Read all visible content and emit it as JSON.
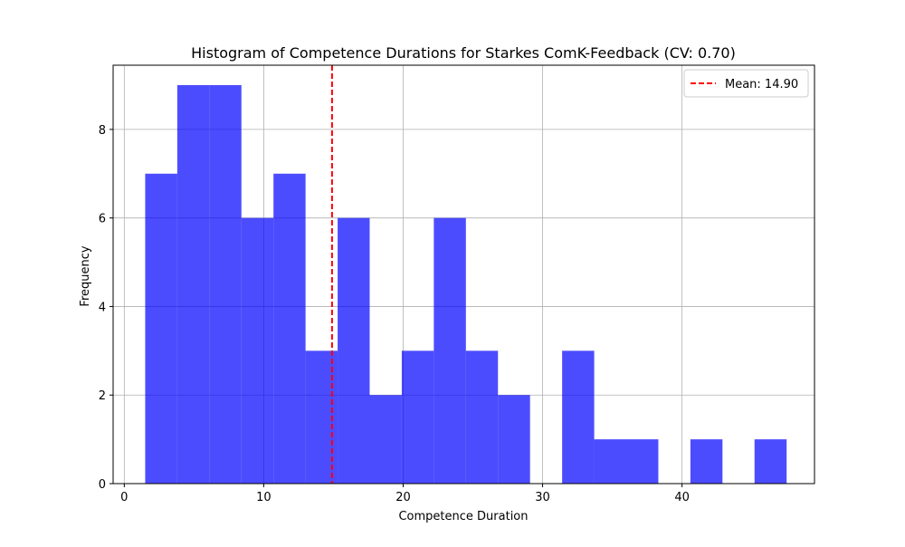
{
  "chart_data": {
    "type": "bar",
    "title": "Histogram of Competence Durations for Starkes ComK-Feedback (CV: 0.70)",
    "xlabel": "Competence Duration",
    "ylabel": "Frequency",
    "xlim": [
      -0.8,
      49.5
    ],
    "ylim": [
      0,
      9.45
    ],
    "xticks": [
      0,
      10,
      20,
      30,
      40
    ],
    "yticks": [
      0,
      2,
      4,
      6,
      8
    ],
    "grid": true,
    "bar_color": "#0000ff",
    "bar_opacity": 0.7,
    "bins": [
      {
        "x0": 1.5,
        "x1": 3.8,
        "count": 7
      },
      {
        "x0": 3.8,
        "x1": 6.1,
        "count": 9
      },
      {
        "x0": 6.1,
        "x1": 8.4,
        "count": 9
      },
      {
        "x0": 8.4,
        "x1": 10.7,
        "count": 6
      },
      {
        "x0": 10.7,
        "x1": 13.0,
        "count": 7
      },
      {
        "x0": 13.0,
        "x1": 15.3,
        "count": 3
      },
      {
        "x0": 15.3,
        "x1": 17.6,
        "count": 6
      },
      {
        "x0": 17.6,
        "x1": 19.9,
        "count": 2
      },
      {
        "x0": 19.9,
        "x1": 22.2,
        "count": 3
      },
      {
        "x0": 22.2,
        "x1": 24.5,
        "count": 6
      },
      {
        "x0": 24.5,
        "x1": 26.8,
        "count": 3
      },
      {
        "x0": 26.8,
        "x1": 29.1,
        "count": 2
      },
      {
        "x0": 29.1,
        "x1": 31.4,
        "count": 0
      },
      {
        "x0": 31.4,
        "x1": 33.7,
        "count": 3
      },
      {
        "x0": 33.7,
        "x1": 36.0,
        "count": 1
      },
      {
        "x0": 36.0,
        "x1": 38.3,
        "count": 1
      },
      {
        "x0": 38.3,
        "x1": 40.6,
        "count": 0
      },
      {
        "x0": 40.6,
        "x1": 42.9,
        "count": 1
      },
      {
        "x0": 42.9,
        "x1": 45.2,
        "count": 0
      },
      {
        "x0": 45.2,
        "x1": 47.5,
        "count": 1
      }
    ],
    "mean_line": {
      "value": 14.9,
      "color": "#ff0000",
      "style": "dashed"
    },
    "legend": {
      "placement": "top-right",
      "entries": [
        {
          "label": "Mean: 14.90",
          "color": "#ff0000",
          "style": "dashed"
        }
      ]
    }
  }
}
